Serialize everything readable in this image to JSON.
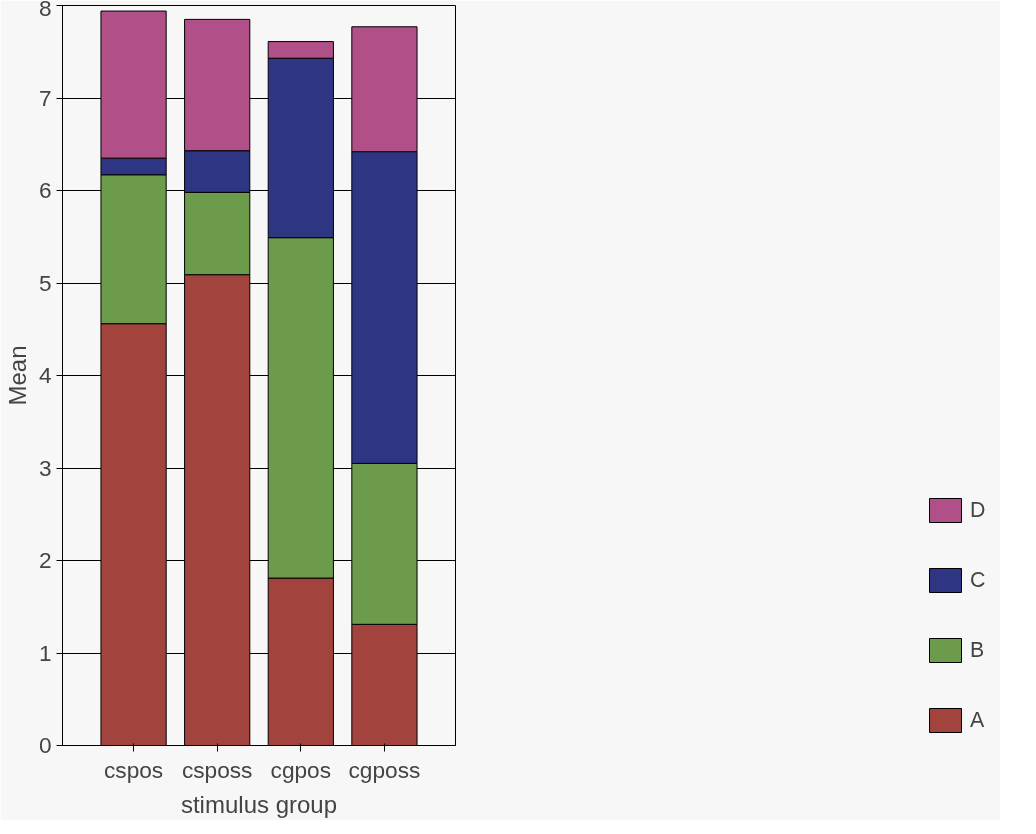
{
  "chart_data": {
    "type": "bar",
    "stacked": true,
    "xlabel": "stimulus group",
    "ylabel": "Mean",
    "categories": [
      "cspos",
      "csposs",
      "cgpos",
      "cgposs"
    ],
    "series": [
      {
        "name": "A",
        "color": "#a3433e",
        "values": [
          4.56,
          5.09,
          1.81,
          1.31
        ]
      },
      {
        "name": "B",
        "color": "#6b9b4b",
        "values": [
          1.61,
          0.89,
          3.68,
          1.74
        ]
      },
      {
        "name": "C",
        "color": "#2e3583",
        "values": [
          0.18,
          0.45,
          1.94,
          3.37
        ]
      },
      {
        "name": "D",
        "color": "#b04f88",
        "values": [
          1.59,
          1.42,
          0.18,
          1.35
        ]
      }
    ],
    "ylim": [
      0,
      8
    ],
    "yticks": [
      0,
      1,
      2,
      3,
      4,
      5,
      6,
      7,
      8
    ],
    "grid": "y",
    "legend": "bottom right"
  }
}
